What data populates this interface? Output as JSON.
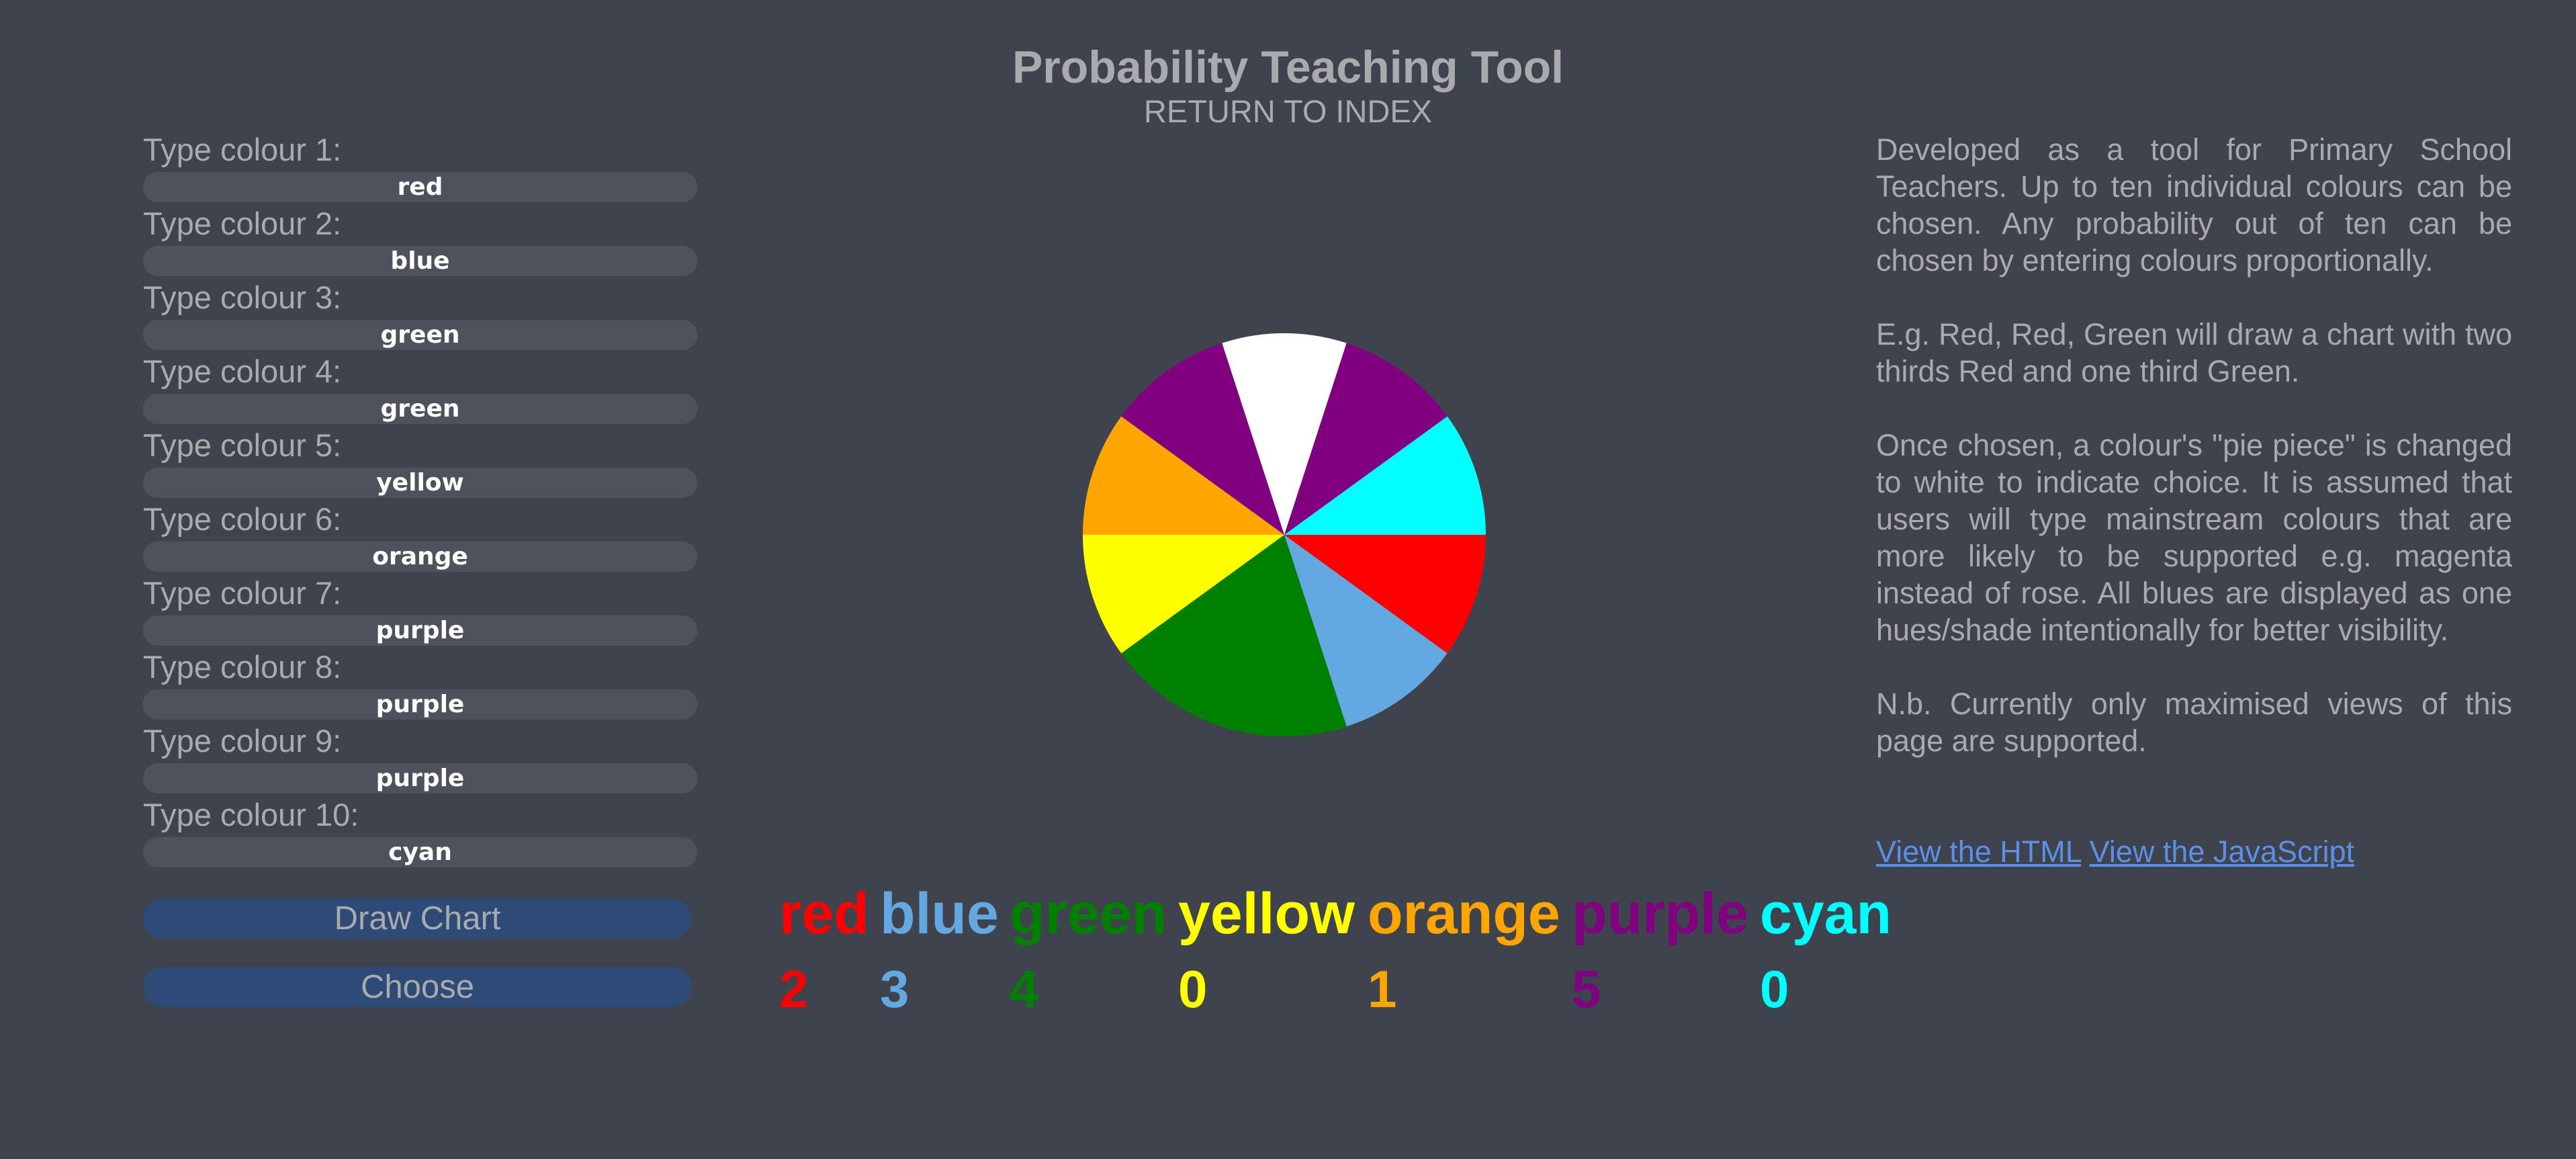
{
  "header": {
    "title": "Probability Teaching Tool",
    "return_link": "RETURN TO INDEX"
  },
  "form": {
    "fields": [
      {
        "label": "Type colour 1:",
        "value": "red"
      },
      {
        "label": "Type colour 2:",
        "value": "blue"
      },
      {
        "label": "Type colour 3:",
        "value": "green"
      },
      {
        "label": "Type colour 4:",
        "value": "green"
      },
      {
        "label": "Type colour 5:",
        "value": "yellow"
      },
      {
        "label": "Type colour 6:",
        "value": "orange"
      },
      {
        "label": "Type colour 7:",
        "value": "purple"
      },
      {
        "label": "Type colour 8:",
        "value": "purple"
      },
      {
        "label": "Type colour 9:",
        "value": "purple"
      },
      {
        "label": "Type colour 10:",
        "value": "cyan"
      }
    ],
    "draw_button": "Draw Chart",
    "choose_button": "Choose"
  },
  "pie": {
    "slices": [
      {
        "colour": "red",
        "fill": "#ff0000"
      },
      {
        "colour": "blue",
        "fill": "#63a8e0"
      },
      {
        "colour": "green",
        "fill": "#008000"
      },
      {
        "colour": "green",
        "fill": "#008000"
      },
      {
        "colour": "yellow",
        "fill": "#ffff00"
      },
      {
        "colour": "orange",
        "fill": "#ffa500"
      },
      {
        "colour": "purple",
        "fill": "#800080"
      },
      {
        "colour": "purple",
        "fill": "#ffffff",
        "chosen": true
      },
      {
        "colour": "purple",
        "fill": "#800080"
      },
      {
        "colour": "cyan",
        "fill": "#00ffff"
      }
    ]
  },
  "legend": [
    {
      "name": "red",
      "count": "2",
      "color": "#ff0000"
    },
    {
      "name": "blue",
      "count": "3",
      "color": "#63a8e0"
    },
    {
      "name": "green",
      "count": "4",
      "color": "#008000"
    },
    {
      "name": "yellow",
      "count": "0",
      "color": "#ffff00"
    },
    {
      "name": "orange",
      "count": "1",
      "color": "#ffa500"
    },
    {
      "name": "purple",
      "count": "5",
      "color": "#800080"
    },
    {
      "name": "cyan",
      "count": "0",
      "color": "#00ffff"
    }
  ],
  "description": {
    "paragraphs": [
      "Developed as a tool for Primary School Teachers. Up to ten individual colours can be chosen. Any probability out of ten can be chosen by entering colours proportionally.",
      "E.g. Red, Red, Green will draw a chart with two thirds Red and one third Green.",
      "Once chosen, a colour's \"pie piece\" is changed to white to indicate choice. It is assumed that users will type mainstream colours that are more likely to be supported e.g. magenta instead of rose. All blues are displayed as one hues/shade intentionally for better visibility.",
      "N.b. Currently only maximised views of this page are supported."
    ],
    "link_html": "View the HTML",
    "link_js": "View the JavaScript"
  }
}
